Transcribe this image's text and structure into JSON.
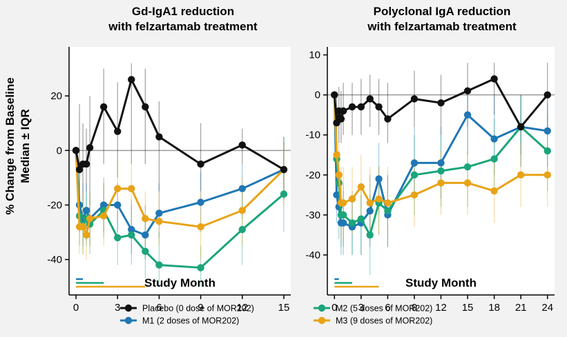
{
  "ylabel_line1": "% Change from Baseline",
  "ylabel_line2": "Median ± IQR",
  "legend": [
    {
      "label": "Placebo (0 dose of MOR202)",
      "color": "#111111"
    },
    {
      "label": "M1 (2 doses of MOR202)",
      "color": "#1f77b4"
    },
    {
      "label": "M2 (5 doses of MOR202)",
      "color": "#1aa57a"
    },
    {
      "label": "M3 (9 doses of MOR202)",
      "color": "#e8a317"
    }
  ],
  "chart_data": [
    {
      "type": "line",
      "title": [
        "Gd-IgA1 reduction",
        "with felzartamab treatment"
      ],
      "xlabel": "Study Month",
      "ylabel": "% Change from Baseline Median ± IQR",
      "xlim": [
        -0.5,
        15.5
      ],
      "ylim": [
        -53,
        38
      ],
      "xticks": [
        0,
        3,
        6,
        9,
        12,
        15
      ],
      "yticks": [
        20,
        0,
        -20,
        -40
      ],
      "reference_line": 0,
      "dosing_bars": [
        {
          "series": "M1",
          "end": 0.5
        },
        {
          "series": "M2",
          "end": 2
        },
        {
          "series": "M3",
          "end": 5
        }
      ],
      "series": [
        {
          "name": "Placebo",
          "color": "#111111",
          "x": [
            0,
            0.25,
            0.5,
            0.75,
            1,
            2,
            3,
            4,
            5,
            6,
            9,
            12,
            15
          ],
          "y": [
            0,
            -7,
            -5,
            -5,
            1,
            16,
            7,
            26,
            16,
            5,
            -5,
            2,
            -7
          ],
          "err": [
            [
              0,
              0
            ],
            [
              -22,
              17
            ],
            [
              -18,
              10
            ],
            [
              -15,
              8
            ],
            [
              -20,
              20
            ],
            [
              -5,
              30
            ],
            [
              -10,
              25
            ],
            [
              -5,
              32
            ],
            [
              -5,
              30
            ],
            [
              -15,
              18
            ],
            [
              -15,
              10
            ],
            [
              -5,
              8
            ],
            [
              -18,
              5
            ]
          ]
        },
        {
          "name": "M1",
          "color": "#1f77b4",
          "x": [
            0,
            0.25,
            0.5,
            0.75,
            1,
            2,
            3,
            4,
            5,
            6,
            9,
            12,
            15
          ],
          "y": [
            0,
            -20,
            -25,
            -22,
            -25,
            -20,
            -20,
            -29,
            -31,
            -23,
            -19,
            -14,
            -7
          ],
          "err": [
            [
              0,
              0
            ],
            [
              -30,
              -5
            ],
            [
              -35,
              -12
            ],
            [
              -33,
              -12
            ],
            [
              -35,
              -15
            ],
            [
              -30,
              -10
            ],
            [
              -30,
              -12
            ],
            [
              -38,
              -18
            ],
            [
              -40,
              -20
            ],
            [
              -32,
              -12
            ],
            [
              -30,
              -8
            ],
            [
              -25,
              -5
            ],
            [
              -15,
              3
            ]
          ]
        },
        {
          "name": "M2",
          "color": "#1aa57a",
          "x": [
            0,
            0.25,
            0.5,
            0.75,
            1,
            2,
            3,
            4,
            5,
            6,
            9,
            12,
            15
          ],
          "y": [
            0,
            -24,
            -28,
            -25,
            -27,
            -22,
            -32,
            -31,
            -37,
            -42,
            -43,
            -29,
            -16
          ],
          "err": [
            [
              0,
              0
            ],
            [
              -35,
              -15
            ],
            [
              -38,
              -18
            ],
            [
              -35,
              -15
            ],
            [
              -38,
              -18
            ],
            [
              -32,
              -12
            ],
            [
              -42,
              -22
            ],
            [
              -42,
              -20
            ],
            [
              -47,
              -25
            ],
            [
              -50,
              -30
            ],
            [
              -50,
              -35
            ],
            [
              -42,
              -15
            ],
            [
              -30,
              5
            ]
          ]
        },
        {
          "name": "M3",
          "color": "#e8a317",
          "x": [
            0,
            0.25,
            0.5,
            0.75,
            1,
            2,
            3,
            4,
            5,
            6,
            9,
            12,
            15
          ],
          "y": [
            0,
            -28,
            -28,
            -31,
            -25,
            -24,
            -14,
            -14,
            -25,
            -26,
            -28,
            -22,
            -7
          ],
          "err": [
            [
              0,
              0
            ],
            [
              -38,
              -18
            ],
            [
              -38,
              -15
            ],
            [
              -40,
              -20
            ],
            [
              -35,
              -15
            ],
            [
              -35,
              -12
            ],
            [
              -25,
              -3
            ],
            [
              -25,
              -3
            ],
            [
              -35,
              -15
            ],
            [
              -35,
              -15
            ],
            [
              -40,
              -15
            ],
            [
              -35,
              -10
            ],
            [
              -20,
              2
            ]
          ]
        }
      ]
    },
    {
      "type": "line",
      "title": [
        "Polyclonal IgA reduction",
        "with felzartamab treatment"
      ],
      "xlabel": "Study Month",
      "ylabel": "",
      "xlim": [
        -0.8,
        24.8
      ],
      "ylim": [
        -50,
        12
      ],
      "xticks": [
        0,
        3,
        6,
        9,
        12,
        15,
        18,
        21,
        24
      ],
      "yticks": [
        10,
        0,
        -10,
        -20,
        -30,
        -40
      ],
      "reference_line": 0,
      "dosing_bars": [
        {
          "series": "M1",
          "end": 0.5
        },
        {
          "series": "M2",
          "end": 2
        },
        {
          "series": "M3",
          "end": 5
        }
      ],
      "series": [
        {
          "name": "Placebo",
          "color": "#111111",
          "x": [
            0,
            0.25,
            0.5,
            0.75,
            1,
            2,
            3,
            4,
            5,
            6,
            9,
            12,
            15,
            18,
            21,
            24
          ],
          "y": [
            0,
            -7,
            -4,
            -6,
            -4,
            -3,
            -3,
            -1,
            -3,
            -6,
            -1,
            -2,
            1,
            4,
            -8,
            0
          ],
          "err": [
            [
              0,
              0
            ],
            [
              -15,
              0
            ],
            [
              -12,
              2
            ],
            [
              -12,
              1
            ],
            [
              -10,
              3
            ],
            [
              -10,
              3
            ],
            [
              -10,
              4
            ],
            [
              -8,
              5
            ],
            [
              -10,
              4
            ],
            [
              -12,
              3
            ],
            [
              -8,
              6
            ],
            [
              -10,
              5
            ],
            [
              -8,
              8
            ],
            [
              -5,
              8
            ],
            [
              -15,
              0
            ],
            [
              -10,
              8
            ]
          ]
        },
        {
          "name": "M1",
          "color": "#1f77b4",
          "x": [
            0,
            0.25,
            0.5,
            0.75,
            1,
            2,
            3,
            4,
            5,
            6,
            9,
            12,
            15,
            18,
            21,
            24
          ],
          "y": [
            0,
            -25,
            -28,
            -32,
            -32,
            -33,
            -32,
            -29,
            -21,
            -30,
            -17,
            -17,
            -5,
            -11,
            -8,
            -9
          ],
          "err": [
            [
              0,
              0
            ],
            [
              -32,
              -18
            ],
            [
              -36,
              -20
            ],
            [
              -40,
              -24
            ],
            [
              -40,
              -24
            ],
            [
              -40,
              -25
            ],
            [
              -40,
              -25
            ],
            [
              -38,
              -20
            ],
            [
              -30,
              -12
            ],
            [
              -38,
              -20
            ],
            [
              -26,
              -8
            ],
            [
              -26,
              -8
            ],
            [
              -15,
              0
            ],
            [
              -20,
              0
            ],
            [
              -18,
              0
            ],
            [
              -18,
              -2
            ]
          ]
        },
        {
          "name": "M2",
          "color": "#1aa57a",
          "x": [
            0,
            0.25,
            0.5,
            0.75,
            1,
            2,
            3,
            4,
            5,
            6,
            9,
            12,
            15,
            18,
            21,
            24
          ],
          "y": [
            0,
            -16,
            -22,
            -30,
            -30,
            -32,
            -31,
            -35,
            -27,
            -29,
            -20,
            -19,
            -18,
            -16,
            -8,
            -14
          ],
          "err": [
            [
              0,
              0
            ],
            [
              -25,
              -8
            ],
            [
              -30,
              -14
            ],
            [
              -38,
              -20
            ],
            [
              -38,
              -22
            ],
            [
              -40,
              -24
            ],
            [
              -40,
              -22
            ],
            [
              -45,
              -25
            ],
            [
              -35,
              -18
            ],
            [
              -38,
              -20
            ],
            [
              -30,
              -10
            ],
            [
              -28,
              -10
            ],
            [
              -28,
              -8
            ],
            [
              -25,
              -6
            ],
            [
              -18,
              0
            ],
            [
              -24,
              -5
            ]
          ]
        },
        {
          "name": "M3",
          "color": "#e8a317",
          "x": [
            0,
            0.25,
            0.5,
            0.75,
            1,
            2,
            3,
            4,
            5,
            6,
            9,
            12,
            15,
            18,
            21,
            24
          ],
          "y": [
            0,
            -15,
            -20,
            -27,
            -27,
            -26,
            -23,
            -27,
            -26,
            -27,
            -25,
            -22,
            -22,
            -24,
            -20,
            -20
          ],
          "err": [
            [
              0,
              0
            ],
            [
              -25,
              -5
            ],
            [
              -28,
              -12
            ],
            [
              -36,
              -18
            ],
            [
              -36,
              -18
            ],
            [
              -35,
              -18
            ],
            [
              -32,
              -15
            ],
            [
              -35,
              -18
            ],
            [
              -35,
              -18
            ],
            [
              -35,
              -18
            ],
            [
              -33,
              -16
            ],
            [
              -30,
              -14
            ],
            [
              -30,
              -14
            ],
            [
              -32,
              -16
            ],
            [
              -28,
              -12
            ],
            [
              -28,
              -12
            ]
          ]
        }
      ]
    }
  ]
}
